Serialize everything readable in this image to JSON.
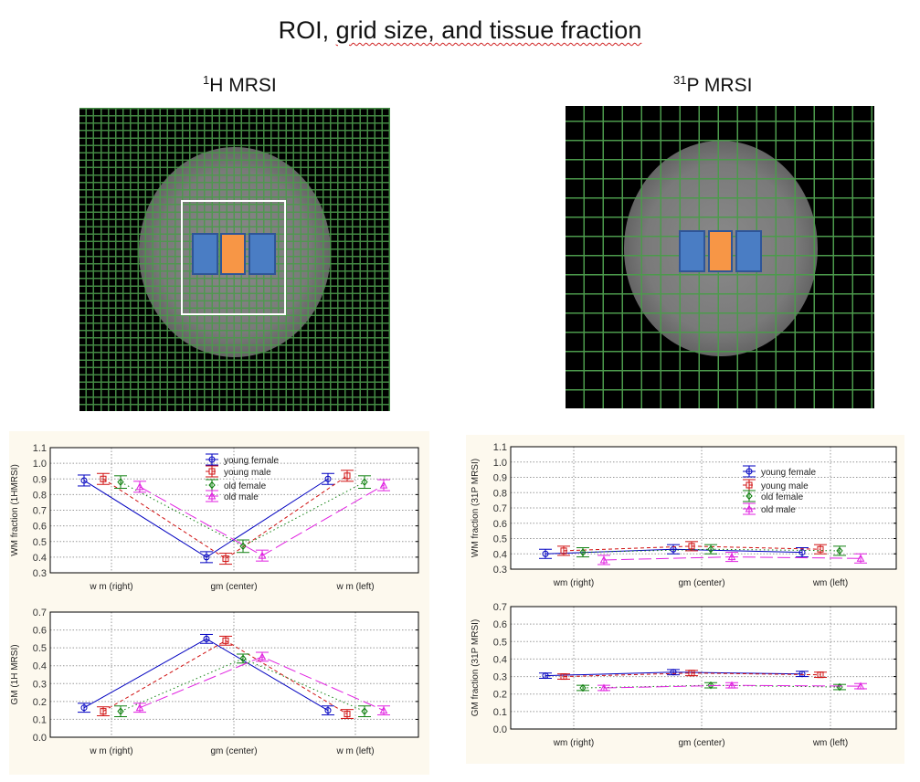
{
  "title": {
    "part1": "ROI, ",
    "part2": "grid size, and tissue fraction"
  },
  "headers": {
    "h1": {
      "sup": "1",
      "text": "H MRSI"
    },
    "p31": {
      "sup": "31",
      "text": "P MRSI"
    }
  },
  "colors": {
    "young female": "#0000c0",
    "young male": "#d01010",
    "old female": "#108010",
    "old male": "#e020e0",
    "grid": "#4c9a4c",
    "roi_blue": "#4a7dc4",
    "roi_orange": "#f79646",
    "panel_bg": "#fdf9ee"
  },
  "chart_data": [
    {
      "type": "line",
      "ylabel": "WM fraction (1HMRSI)",
      "categories": [
        "w m (right)",
        "gm (center)",
        "w m (left)"
      ],
      "ylim": [
        0.3,
        1.1
      ],
      "yticks": [
        "0.3",
        "0.4",
        "0.5",
        "0.6",
        "0.7",
        "0.8",
        "0.9",
        "1.0",
        "1.1"
      ],
      "grid": true,
      "legend": "top-center",
      "series": [
        {
          "name": "young female",
          "values": [
            0.89,
            0.4,
            0.9
          ],
          "err": [
            0.035,
            0.035,
            0.035
          ]
        },
        {
          "name": "young male",
          "values": [
            0.9,
            0.39,
            0.92
          ],
          "err": [
            0.035,
            0.035,
            0.035
          ]
        },
        {
          "name": "old female",
          "values": [
            0.88,
            0.47,
            0.88
          ],
          "err": [
            0.04,
            0.04,
            0.04
          ]
        },
        {
          "name": "old male",
          "values": [
            0.85,
            0.41,
            0.86
          ],
          "err": [
            0.035,
            0.035,
            0.035
          ]
        }
      ]
    },
    {
      "type": "line",
      "ylabel": "WM fraction (31P MRSI)",
      "categories": [
        "wm (right)",
        "gm (center)",
        "wm (left)"
      ],
      "ylim": [
        0.3,
        1.1
      ],
      "yticks": [
        "0.3",
        "0.4",
        "0.5",
        "0.6",
        "0.7",
        "0.8",
        "0.9",
        "1.0",
        "1.1"
      ],
      "grid": true,
      "legend": "top-right",
      "series": [
        {
          "name": "young female",
          "values": [
            0.4,
            0.43,
            0.41
          ],
          "err": [
            0.03,
            0.03,
            0.03
          ]
        },
        {
          "name": "young male",
          "values": [
            0.42,
            0.45,
            0.43
          ],
          "err": [
            0.03,
            0.03,
            0.03
          ]
        },
        {
          "name": "old female",
          "values": [
            0.41,
            0.43,
            0.42
          ],
          "err": [
            0.03,
            0.03,
            0.03
          ]
        },
        {
          "name": "old male",
          "values": [
            0.36,
            0.38,
            0.37
          ],
          "err": [
            0.03,
            0.03,
            0.03
          ]
        }
      ]
    },
    {
      "type": "line",
      "ylabel": "GM (1H MRSI)",
      "categories": [
        "w m (right)",
        "gm (center)",
        "w m (left)"
      ],
      "ylim": [
        0.0,
        0.7
      ],
      "yticks": [
        "0.0",
        "0.1",
        "0.2",
        "0.3",
        "0.4",
        "0.5",
        "0.6",
        "0.7"
      ],
      "grid": true,
      "series": [
        {
          "name": "young female",
          "values": [
            0.165,
            0.55,
            0.15
          ],
          "err": [
            0.025,
            0.025,
            0.025
          ]
        },
        {
          "name": "young male",
          "values": [
            0.145,
            0.54,
            0.13
          ],
          "err": [
            0.025,
            0.025,
            0.025
          ]
        },
        {
          "name": "old female",
          "values": [
            0.145,
            0.44,
            0.145
          ],
          "err": [
            0.03,
            0.025,
            0.03
          ]
        },
        {
          "name": "old male",
          "values": [
            0.165,
            0.45,
            0.15
          ],
          "err": [
            0.025,
            0.025,
            0.025
          ]
        }
      ]
    },
    {
      "type": "line",
      "ylabel": "GM fraction (31P MRSI)",
      "categories": [
        "wm (right)",
        "gm (center)",
        "wm (left)"
      ],
      "ylim": [
        0.0,
        0.7
      ],
      "yticks": [
        "0.0",
        "0.1",
        "0.2",
        "0.3",
        "0.4",
        "0.5",
        "0.6",
        "0.7"
      ],
      "grid": true,
      "series": [
        {
          "name": "young female",
          "values": [
            0.305,
            0.325,
            0.315
          ],
          "err": [
            0.015,
            0.015,
            0.015
          ]
        },
        {
          "name": "young male",
          "values": [
            0.3,
            0.32,
            0.31
          ],
          "err": [
            0.015,
            0.015,
            0.015
          ]
        },
        {
          "name": "old female",
          "values": [
            0.235,
            0.25,
            0.24
          ],
          "err": [
            0.015,
            0.015,
            0.015
          ]
        },
        {
          "name": "old male",
          "values": [
            0.235,
            0.25,
            0.245
          ],
          "err": [
            0.015,
            0.015,
            0.015
          ]
        }
      ]
    }
  ]
}
